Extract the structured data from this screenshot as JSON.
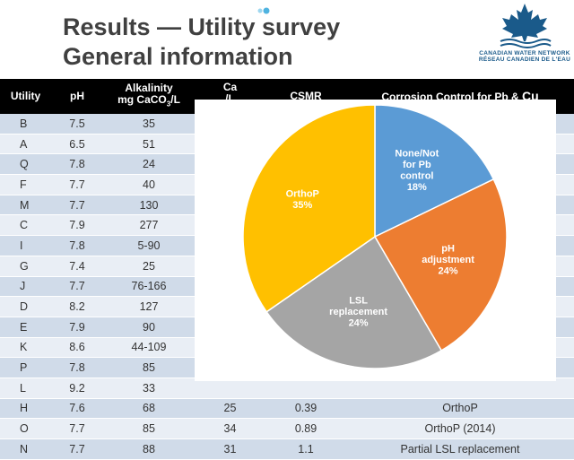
{
  "title": {
    "line1": "Results — Utility survey",
    "line2": "General information"
  },
  "logo": {
    "line1": "CANADIAN WATER NETWORK",
    "line2": "RÉSEAU CANADIEN DE L'EAU",
    "icon": "maple-leaf-icon",
    "color": "#1a5a8a"
  },
  "table": {
    "headers": [
      "Utility",
      "pH",
      "Alkalinity mg CaCO3/L",
      "Ca mg/L",
      "CSMR",
      "Corrosion Control for Pb & Cu"
    ],
    "header_alk_line1": "Alkalinity",
    "header_alk_line2": "mg CaCO",
    "header_alk_sub": "3",
    "header_alk_tail": "/L",
    "header_ca_visible": "Ca",
    "header_ca_partial": "/L",
    "header_cc_main": "Corrosion Control for Pb & ",
    "header_cc_cu": "Cu",
    "rows": [
      {
        "utility": "B",
        "ph": "7.5",
        "alk": "35",
        "ca": "",
        "csmr": "",
        "cc": ""
      },
      {
        "utility": "A",
        "ph": "6.5",
        "alk": "51",
        "ca": "",
        "csmr": "",
        "cc": ""
      },
      {
        "utility": "Q",
        "ph": "7.8",
        "alk": "24",
        "ca": "",
        "csmr": "",
        "cc": ""
      },
      {
        "utility": "F",
        "ph": "7.7",
        "alk": "40",
        "ca": "",
        "csmr": "",
        "cc": ""
      },
      {
        "utility": "M",
        "ph": "7.7",
        "alk": "130",
        "ca": "",
        "csmr": "",
        "cc": ""
      },
      {
        "utility": "C",
        "ph": "7.9",
        "alk": "277",
        "ca": "",
        "csmr": "",
        "cc": ""
      },
      {
        "utility": "I",
        "ph": "7.8",
        "alk": "5-90",
        "ca": "",
        "csmr": "",
        "cc": ""
      },
      {
        "utility": "G",
        "ph": "7.4",
        "alk": "25",
        "ca": "",
        "csmr": "",
        "cc": ""
      },
      {
        "utility": "J",
        "ph": "7.7",
        "alk": "76-166",
        "ca": "",
        "csmr": "",
        "cc": ""
      },
      {
        "utility": "D",
        "ph": "8.2",
        "alk": "127",
        "ca": "",
        "csmr": "",
        "cc": ""
      },
      {
        "utility": "E",
        "ph": "7.9",
        "alk": "90",
        "ca": "",
        "csmr": "",
        "cc": ""
      },
      {
        "utility": "K",
        "ph": "8.6",
        "alk": "44-109",
        "ca": "",
        "csmr": "",
        "cc": ""
      },
      {
        "utility": "P",
        "ph": "7.8",
        "alk": "85",
        "ca": "",
        "csmr": "",
        "cc": ""
      },
      {
        "utility": "L",
        "ph": "9.2",
        "alk": "33",
        "ca": "",
        "csmr": "",
        "cc": ""
      },
      {
        "utility": "H",
        "ph": "7.6",
        "alk": "68",
        "ca": "25",
        "csmr": "0.39",
        "cc": "OrthoP"
      },
      {
        "utility": "O",
        "ph": "7.7",
        "alk": "85",
        "ca": "34",
        "csmr": "0.89",
        "cc": "OrthoP (2014)"
      },
      {
        "utility": "N",
        "ph": "7.7",
        "alk": "88",
        "ca": "31",
        "csmr": "1.1",
        "cc": "Partial LSL replacement"
      }
    ]
  },
  "chart_data": {
    "type": "pie",
    "title": "",
    "slices": [
      {
        "label_lines": [
          "None/Not",
          "for Pb",
          "control",
          "18%"
        ],
        "label": "None/Not for Pb control",
        "value": 18,
        "color": "#5b9bd5"
      },
      {
        "label_lines": [
          "pH",
          "adjustment",
          "24%"
        ],
        "label": "pH adjustment",
        "value": 24,
        "color": "#ed7d31"
      },
      {
        "label_lines": [
          "LSL",
          "replacement",
          "24%"
        ],
        "label": "LSL replacement",
        "value": 24,
        "color": "#a5a5a5"
      },
      {
        "label_lines": [
          "OrthoP",
          "35%"
        ],
        "label": "OrthoP",
        "value": 35,
        "color": "#ffc000"
      }
    ]
  }
}
